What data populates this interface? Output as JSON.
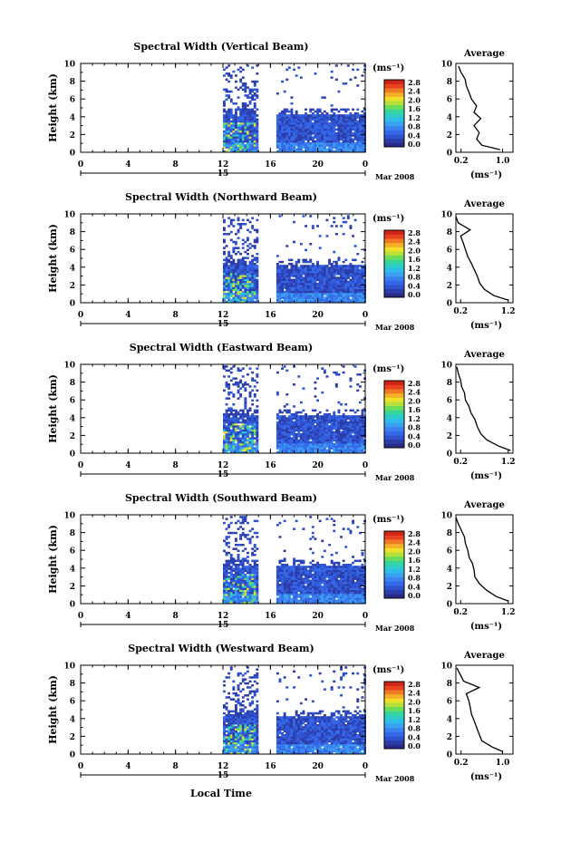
{
  "figure": {
    "date_label": "Mar 2008",
    "day_label": "15",
    "xlabel_bottom": "Local Time",
    "colorbar_unit": "(ms⁻¹)",
    "avg_title": "Average",
    "avg_xlabel": "(ms⁻¹)"
  },
  "chart_data": [
    {
      "type": "heatmap",
      "title": "Spectral Width (Vertical Beam)",
      "ylabel": "Height (km)",
      "xlim": [
        0,
        24
      ],
      "ylim": [
        0,
        10
      ],
      "x_ticks": [
        "0",
        "4",
        "8",
        "12",
        "16",
        "20",
        "0"
      ],
      "y_ticks": [
        "0",
        "2",
        "4",
        "6",
        "8",
        "10"
      ],
      "colorbar": {
        "ticks": [
          "0.0",
          "0.4",
          "0.8",
          "1.2",
          "1.6",
          "2.0",
          "2.4",
          "2.8"
        ],
        "range": [
          0,
          2.8
        ]
      },
      "data_segments_hours": [
        [
          12.0,
          14.8
        ],
        [
          16.5,
          24.0
        ]
      ],
      "average_profile": {
        "x_ticks": [
          "0.2",
          "1.0"
        ],
        "xlim": [
          0.1,
          1.2
        ],
        "ylim": [
          0,
          10
        ],
        "y_ticks": [
          "0",
          "2",
          "4",
          "6",
          "8",
          "10"
        ],
        "height_km": [
          0.3,
          0.8,
          1.5,
          2.2,
          3,
          3.8,
          4.5,
          5.2,
          6,
          6.8,
          7.5,
          8.2,
          9,
          9.7
        ],
        "width": [
          0.95,
          0.6,
          0.5,
          0.55,
          0.45,
          0.58,
          0.45,
          0.5,
          0.4,
          0.35,
          0.3,
          0.28,
          0.2,
          0.15
        ]
      }
    },
    {
      "type": "heatmap",
      "title": "Spectral Width (Northward Beam)",
      "ylabel": "Height (km)",
      "xlim": [
        0,
        24
      ],
      "ylim": [
        0,
        10
      ],
      "x_ticks": [
        "0",
        "4",
        "8",
        "12",
        "16",
        "20",
        "0"
      ],
      "y_ticks": [
        "0",
        "2",
        "4",
        "6",
        "8",
        "10"
      ],
      "colorbar": {
        "ticks": [
          "0.0",
          "0.4",
          "0.8",
          "1.2",
          "1.6",
          "2.0",
          "2.4",
          "2.8"
        ],
        "range": [
          0,
          2.8
        ]
      },
      "data_segments_hours": [
        [
          12.0,
          14.8
        ],
        [
          16.5,
          24.0
        ]
      ],
      "average_profile": {
        "x_ticks": [
          "0.2",
          "1.2"
        ],
        "xlim": [
          0.1,
          1.3
        ],
        "ylim": [
          0,
          10
        ],
        "y_ticks": [
          "0",
          "2",
          "4",
          "6",
          "8",
          "10"
        ],
        "height_km": [
          0.3,
          0.8,
          1.5,
          2.2,
          3,
          3.8,
          4.5,
          5.2,
          6,
          6.8,
          7.5,
          8.2,
          9,
          9.7
        ],
        "width": [
          1.2,
          0.9,
          0.7,
          0.6,
          0.55,
          0.48,
          0.42,
          0.35,
          0.3,
          0.25,
          0.2,
          0.4,
          0.15,
          0.1
        ]
      }
    },
    {
      "type": "heatmap",
      "title": "Spectral Width (Eastward Beam)",
      "ylabel": "Height (km)",
      "xlim": [
        0,
        24
      ],
      "ylim": [
        0,
        10
      ],
      "x_ticks": [
        "0",
        "4",
        "8",
        "12",
        "16",
        "20",
        "0"
      ],
      "y_ticks": [
        "0",
        "2",
        "4",
        "6",
        "8",
        "10"
      ],
      "colorbar": {
        "ticks": [
          "0.0",
          "0.4",
          "0.8",
          "1.2",
          "1.6",
          "2.0",
          "2.4",
          "2.8"
        ],
        "range": [
          0,
          2.8
        ]
      },
      "data_segments_hours": [
        [
          12.0,
          14.8
        ],
        [
          16.5,
          24.0
        ]
      ],
      "average_profile": {
        "x_ticks": [
          "0.2",
          "1.2"
        ],
        "xlim": [
          0.1,
          1.3
        ],
        "ylim": [
          0,
          10
        ],
        "y_ticks": [
          "0",
          "2",
          "4",
          "6",
          "8",
          "10"
        ],
        "height_km": [
          0.3,
          0.8,
          1.5,
          2.2,
          3,
          3.8,
          4.5,
          5.2,
          6,
          6.8,
          7.5,
          8.2,
          9,
          9.7
        ],
        "width": [
          1.25,
          1.0,
          0.75,
          0.62,
          0.55,
          0.5,
          0.42,
          0.38,
          0.3,
          0.28,
          0.22,
          0.2,
          0.15,
          0.12
        ]
      }
    },
    {
      "type": "heatmap",
      "title": "Spectral Width (Southward Beam)",
      "ylabel": "Height (km)",
      "xlim": [
        0,
        24
      ],
      "ylim": [
        0,
        10
      ],
      "x_ticks": [
        "0",
        "4",
        "8",
        "12",
        "16",
        "20",
        "0"
      ],
      "y_ticks": [
        "0",
        "2",
        "4",
        "6",
        "8",
        "10"
      ],
      "colorbar": {
        "ticks": [
          "0.0",
          "0.4",
          "0.8",
          "1.2",
          "1.6",
          "2.0",
          "2.4",
          "2.8"
        ],
        "range": [
          0,
          2.8
        ]
      },
      "data_segments_hours": [
        [
          12.0,
          14.8
        ],
        [
          16.5,
          24.0
        ]
      ],
      "average_profile": {
        "x_ticks": [
          "0.2",
          "1.2"
        ],
        "xlim": [
          0.1,
          1.3
        ],
        "ylim": [
          0,
          10
        ],
        "y_ticks": [
          "0",
          "2",
          "4",
          "6",
          "8",
          "10"
        ],
        "height_km": [
          0.3,
          0.8,
          1.5,
          2.2,
          3,
          3.8,
          4.5,
          5.2,
          6,
          6.8,
          7.5,
          8.2,
          9,
          9.7
        ],
        "width": [
          1.2,
          0.95,
          0.75,
          0.6,
          0.5,
          0.48,
          0.45,
          0.38,
          0.35,
          0.3,
          0.28,
          0.22,
          0.15,
          0.1
        ]
      }
    },
    {
      "type": "heatmap",
      "title": "Spectral Width (Westward Beam)",
      "ylabel": "Height (km)",
      "xlim": [
        0,
        24
      ],
      "ylim": [
        0,
        10
      ],
      "x_ticks": [
        "0",
        "4",
        "8",
        "12",
        "16",
        "20",
        "0"
      ],
      "y_ticks": [
        "0",
        "2",
        "4",
        "6",
        "8",
        "10"
      ],
      "colorbar": {
        "ticks": [
          "0.0",
          "0.4",
          "0.8",
          "1.2",
          "1.6",
          "2.0",
          "2.4",
          "2.8"
        ],
        "range": [
          0,
          2.8
        ]
      },
      "data_segments_hours": [
        [
          12.0,
          14.8
        ],
        [
          16.5,
          24.0
        ]
      ],
      "average_profile": {
        "x_ticks": [
          "0.2",
          "1.0"
        ],
        "xlim": [
          0.1,
          1.2
        ],
        "ylim": [
          0,
          10
        ],
        "y_ticks": [
          "0",
          "2",
          "4",
          "6",
          "8",
          "10"
        ],
        "height_km": [
          0.3,
          0.8,
          1.5,
          2.2,
          3,
          3.8,
          4.5,
          5.2,
          6,
          6.8,
          7.5,
          8.2,
          9,
          9.7
        ],
        "width": [
          1.0,
          0.8,
          0.6,
          0.55,
          0.5,
          0.45,
          0.4,
          0.38,
          0.35,
          0.3,
          0.55,
          0.25,
          0.18,
          0.12
        ]
      }
    }
  ]
}
